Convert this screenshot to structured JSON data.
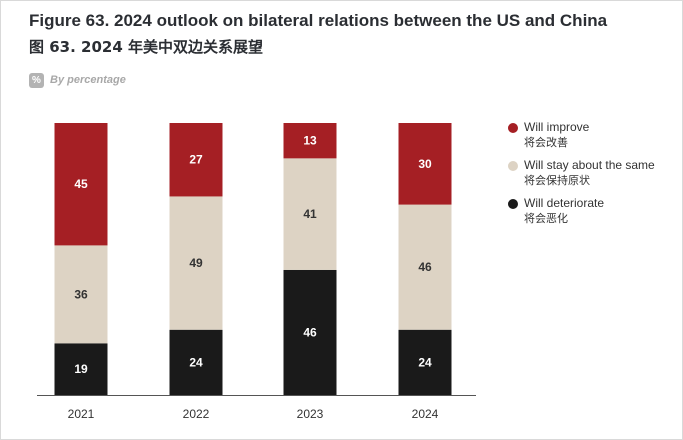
{
  "title_en": "Figure 63. 2024 outlook on bilateral relations between the US and China",
  "title_zh": "图 63. 2024 年美中双边关系展望",
  "unit_badge": "%",
  "unit_label": "By percentage",
  "colors": {
    "improve": "#a51f24",
    "same": "#ddd3c4",
    "deteriorate": "#1a1a1a",
    "label_light": "#ffffff",
    "label_dark": "#333333"
  },
  "chart_data": {
    "type": "bar",
    "stacked": true,
    "categories": [
      "2021",
      "2022",
      "2023",
      "2024"
    ],
    "series": [
      {
        "name": "Will deteriorate",
        "name_zh": "将会恶化",
        "color_key": "deteriorate",
        "values": [
          19,
          24,
          46,
          24
        ]
      },
      {
        "name": "Will stay about the same",
        "name_zh": "将会保持原状",
        "color_key": "same",
        "values": [
          36,
          49,
          41,
          46
        ]
      },
      {
        "name": "Will improve",
        "name_zh": "将会改善",
        "color_key": "improve",
        "values": [
          45,
          27,
          13,
          30
        ]
      }
    ],
    "ylim": [
      0,
      100
    ],
    "legend_position": "right",
    "legend_order": [
      "Will improve",
      "Will stay about the same",
      "Will deteriorate"
    ],
    "grid": false
  }
}
